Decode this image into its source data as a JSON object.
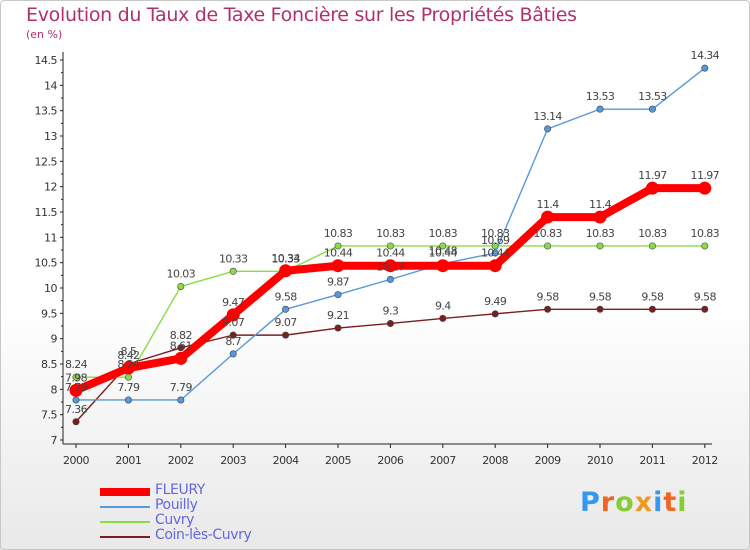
{
  "chart_data": {
    "type": "line",
    "title": "Evolution du Taux de Taxe Foncière sur les Propriétés Bâties",
    "ylabel": "(en %)",
    "xlabel": "",
    "ylim": [
      7,
      14.5
    ],
    "yticks": [
      "7",
      "7.5",
      "8",
      "8.5",
      "9",
      "9.5",
      "10",
      "10.5",
      "11",
      "11.5",
      "12",
      "12.5",
      "13",
      "13.5",
      "14",
      "14.5"
    ],
    "categories": [
      "2000",
      "2001",
      "2002",
      "2003",
      "2004",
      "2005",
      "2006",
      "2007",
      "2008",
      "2009",
      "2010",
      "2011",
      "2012"
    ],
    "series": [
      {
        "name": "FLEURY",
        "color": "#ff0000",
        "values": [
          7.98,
          8.42,
          8.61,
          9.47,
          10.34,
          10.44,
          10.44,
          10.44,
          10.44,
          11.4,
          11.4,
          11.97,
          11.97
        ],
        "labels": [
          "7.98",
          "8.42",
          "8.61",
          "9.47",
          "10.34",
          "10.44",
          "10.44",
          "10.44",
          "10.44",
          "11.4",
          "11.4",
          "11.97",
          "11.97"
        ]
      },
      {
        "name": "Pouilly",
        "color": "#5599dd",
        "values": [
          7.79,
          7.79,
          7.79,
          8.7,
          9.58,
          9.87,
          10.17,
          10.48,
          10.69,
          13.14,
          13.53,
          13.53,
          14.34
        ],
        "labels": [
          "7.79",
          "7.79",
          "7.79",
          "8.7",
          "9.58",
          "9.87",
          "10.17",
          "10.48",
          "10.69",
          "13.14",
          "13.53",
          "13.53",
          "14.34"
        ]
      },
      {
        "name": "Cuvry",
        "color": "#88dd44",
        "values": [
          8.24,
          8.24,
          10.03,
          10.33,
          10.33,
          10.83,
          10.83,
          10.83,
          10.83,
          10.83,
          10.83,
          10.83,
          10.83
        ],
        "labels": [
          "8.24",
          "8.24",
          "10.03",
          "10.33",
          "10.33",
          "10.83",
          "10.83",
          "10.83",
          "10.83",
          "10.83",
          "10.83",
          "10.83",
          "10.83"
        ]
      },
      {
        "name": "Coin-lès-Cuvry",
        "color": "#7a1f1f",
        "values": [
          7.36,
          8.5,
          8.82,
          9.07,
          9.07,
          9.21,
          9.3,
          9.4,
          9.49,
          9.58,
          9.58,
          9.58,
          9.58
        ],
        "labels": [
          "7.36",
          "8.5",
          "8.82",
          "9.07",
          "9.07",
          "9.21",
          "9.3",
          "9.4",
          "9.49",
          "9.58",
          "9.58",
          "9.58",
          "9.58"
        ]
      }
    ],
    "legend": {
      "position": "bottom-left"
    },
    "grid": false
  },
  "legend_entries": [
    {
      "label": "FLEURY",
      "color": "#ff0000",
      "text_color": "#6666dd"
    },
    {
      "label": "Pouilly",
      "color": "#5599dd",
      "text_color": "#6666dd"
    },
    {
      "label": "Cuvry",
      "color": "#88dd44",
      "text_color": "#6666dd"
    },
    {
      "label": "Coin-lès-Cuvry",
      "color": "#7a1f1f",
      "text_color": "#6666dd"
    }
  ],
  "brand": {
    "logo_text": "Proxiti",
    "letter_colors": [
      "#3399ee",
      "#ee6622",
      "#88cc33",
      "#ee9922",
      "#3399ee",
      "#ee6622",
      "#88cc33"
    ]
  }
}
